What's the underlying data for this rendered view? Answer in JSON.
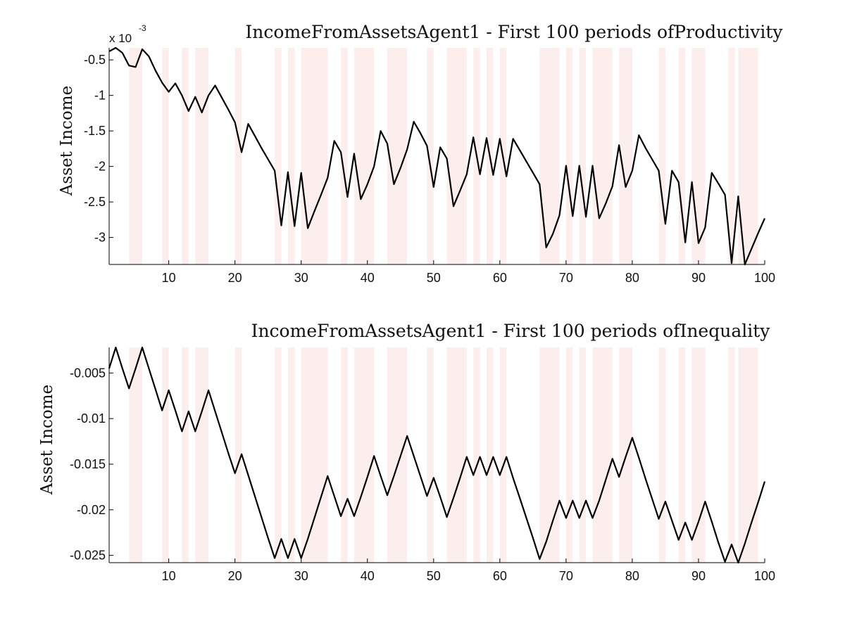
{
  "chart_data": [
    {
      "type": "line",
      "title": "IncomeFromAssetsAgent1 - First 100 periods ofProductivity",
      "ylabel": "Asset Income",
      "xlabel": "",
      "y_exponent_base": "x 10",
      "y_exponent_power": "-3",
      "xlim": [
        1,
        100
      ],
      "ylim": [
        -3.38,
        -0.33
      ],
      "xticks": [
        "10",
        "20",
        "30",
        "40",
        "50",
        "60",
        "70",
        "80",
        "90",
        "100"
      ],
      "yticks": [
        "-0.5",
        "-1",
        "-1.5",
        "-2",
        "-2.5",
        "-3"
      ],
      "ytick_values": [
        -0.5,
        -1,
        -1.5,
        -2,
        -2.5,
        -3
      ],
      "grid": false,
      "line_color": "#000000",
      "shade_color": "#fdeeee",
      "shaded_periods": [
        [
          4,
          6
        ],
        [
          9,
          10
        ],
        [
          12,
          13
        ],
        [
          14,
          16
        ],
        [
          20,
          21
        ],
        [
          26,
          27
        ],
        [
          28,
          29
        ],
        [
          30,
          34
        ],
        [
          36,
          37
        ],
        [
          38,
          41
        ],
        [
          43,
          46
        ],
        [
          49,
          50
        ],
        [
          52,
          55
        ],
        [
          56,
          57
        ],
        [
          58,
          59
        ],
        [
          60,
          61
        ],
        [
          66,
          69
        ],
        [
          70,
          71
        ],
        [
          72,
          73
        ],
        [
          74,
          77
        ],
        [
          78,
          80
        ],
        [
          84,
          85
        ],
        [
          87,
          88
        ],
        [
          89,
          91
        ],
        [
          94.5,
          95.5
        ],
        [
          96,
          99
        ]
      ],
      "x": [
        1,
        2,
        3,
        4,
        5,
        6,
        7,
        8,
        9,
        10,
        11,
        12,
        13,
        14,
        15,
        16,
        17,
        18,
        19,
        20,
        21,
        22,
        23,
        24,
        25,
        26,
        27,
        28,
        29,
        30,
        31,
        32,
        33,
        34,
        35,
        36,
        37,
        38,
        39,
        40,
        41,
        42,
        43,
        44,
        45,
        46,
        47,
        48,
        49,
        50,
        51,
        52,
        53,
        54,
        55,
        56,
        57,
        58,
        59,
        60,
        61,
        62,
        63,
        64,
        65,
        66,
        67,
        68,
        69,
        70,
        71,
        72,
        73,
        74,
        75,
        76,
        77,
        78,
        79,
        80,
        81,
        82,
        83,
        84,
        85,
        86,
        87,
        88,
        89,
        90,
        91,
        92,
        93,
        94,
        95,
        96,
        97,
        98,
        99,
        100
      ],
      "values": [
        -0.38,
        -0.33,
        -0.4,
        -0.58,
        -0.6,
        -0.35,
        -0.45,
        -0.65,
        -0.82,
        -0.95,
        -0.83,
        -1.0,
        -1.22,
        -1.02,
        -1.24,
        -1.0,
        -0.86,
        -1.03,
        -1.2,
        -1.38,
        -1.8,
        -1.4,
        -1.57,
        -1.74,
        -1.9,
        -2.06,
        -2.83,
        -2.08,
        -2.84,
        -2.09,
        -2.87,
        -2.63,
        -2.4,
        -2.16,
        -1.64,
        -1.8,
        -2.43,
        -1.82,
        -2.46,
        -2.25,
        -2.0,
        -1.5,
        -1.68,
        -2.25,
        -2.02,
        -1.76,
        -1.37,
        -1.53,
        -1.71,
        -2.29,
        -1.73,
        -1.89,
        -2.56,
        -2.34,
        -2.11,
        -1.59,
        -2.11,
        -1.6,
        -2.12,
        -1.61,
        -2.14,
        -1.61,
        -1.77,
        -1.93,
        -2.09,
        -2.25,
        -3.14,
        -2.95,
        -2.69,
        -1.99,
        -2.7,
        -1.99,
        -2.71,
        -1.99,
        -2.73,
        -2.52,
        -2.28,
        -1.7,
        -2.29,
        -2.06,
        -1.56,
        -1.74,
        -1.9,
        -2.06,
        -2.81,
        -2.06,
        -2.22,
        -3.07,
        -2.22,
        -3.08,
        -2.86,
        -2.09,
        -2.24,
        -2.4,
        -3.36,
        -2.42,
        -3.38,
        -3.16,
        -2.94,
        -2.73
      ]
    },
    {
      "type": "line",
      "title": "IncomeFromAssetsAgent1 - First 100 periods ofInequality",
      "ylabel": "Asset Income",
      "xlabel": "",
      "xlim": [
        1,
        100
      ],
      "ylim": [
        -0.0258,
        -0.0022
      ],
      "xticks": [
        "10",
        "20",
        "30",
        "40",
        "50",
        "60",
        "70",
        "80",
        "90",
        "100"
      ],
      "yticks": [
        "-0.005",
        "-0.01",
        "-0.015",
        "-0.02",
        "-0.025"
      ],
      "ytick_values": [
        -0.005,
        -0.01,
        -0.015,
        -0.02,
        -0.025
      ],
      "grid": false,
      "line_color": "#000000",
      "shade_color": "#fdeeee",
      "shaded_periods": [
        [
          4,
          6
        ],
        [
          9,
          10
        ],
        [
          12,
          13
        ],
        [
          14,
          16
        ],
        [
          20,
          21
        ],
        [
          26,
          27
        ],
        [
          28,
          29
        ],
        [
          30,
          34
        ],
        [
          36,
          37
        ],
        [
          38,
          41
        ],
        [
          43,
          46
        ],
        [
          49,
          50
        ],
        [
          52,
          55
        ],
        [
          56,
          57
        ],
        [
          58,
          59
        ],
        [
          60,
          61
        ],
        [
          66,
          69
        ],
        [
          70,
          71
        ],
        [
          72,
          73
        ],
        [
          74,
          77
        ],
        [
          78,
          80
        ],
        [
          84,
          85
        ],
        [
          87,
          88
        ],
        [
          89,
          91
        ],
        [
          94.5,
          95.5
        ],
        [
          96,
          99
        ]
      ],
      "x": [
        1,
        2,
        3,
        4,
        5,
        6,
        7,
        8,
        9,
        10,
        11,
        12,
        13,
        14,
        15,
        16,
        17,
        18,
        19,
        20,
        21,
        22,
        23,
        24,
        25,
        26,
        27,
        28,
        29,
        30,
        31,
        32,
        33,
        34,
        35,
        36,
        37,
        38,
        39,
        40,
        41,
        42,
        43,
        44,
        45,
        46,
        47,
        48,
        49,
        50,
        51,
        52,
        53,
        54,
        55,
        56,
        57,
        58,
        59,
        60,
        61,
        62,
        63,
        64,
        65,
        66,
        67,
        68,
        69,
        70,
        71,
        72,
        73,
        74,
        75,
        76,
        77,
        78,
        79,
        80,
        81,
        82,
        83,
        84,
        85,
        86,
        87,
        88,
        89,
        90,
        91,
        92,
        93,
        94,
        95,
        96,
        97,
        98,
        99,
        100
      ],
      "values": [
        -0.0045,
        -0.0022,
        -0.0045,
        -0.0067,
        -0.0045,
        -0.0022,
        -0.0045,
        -0.0068,
        -0.0091,
        -0.0069,
        -0.0091,
        -0.0114,
        -0.0092,
        -0.0114,
        -0.0092,
        -0.0069,
        -0.0092,
        -0.0115,
        -0.0138,
        -0.016,
        -0.0139,
        -0.0162,
        -0.0185,
        -0.0208,
        -0.0231,
        -0.0253,
        -0.0232,
        -0.0253,
        -0.0232,
        -0.0253,
        -0.0232,
        -0.0209,
        -0.0186,
        -0.0163,
        -0.0185,
        -0.0207,
        -0.0188,
        -0.0207,
        -0.0186,
        -0.0164,
        -0.0141,
        -0.0163,
        -0.0184,
        -0.0163,
        -0.0141,
        -0.0119,
        -0.0141,
        -0.0163,
        -0.0185,
        -0.0165,
        -0.0186,
        -0.0208,
        -0.0187,
        -0.0165,
        -0.0142,
        -0.0162,
        -0.0142,
        -0.0162,
        -0.0142,
        -0.0162,
        -0.0142,
        -0.0165,
        -0.0187,
        -0.0209,
        -0.0231,
        -0.0254,
        -0.0235,
        -0.0212,
        -0.019,
        -0.0209,
        -0.019,
        -0.0209,
        -0.019,
        -0.0209,
        -0.019,
        -0.0167,
        -0.0144,
        -0.0164,
        -0.0142,
        -0.0121,
        -0.0143,
        -0.0166,
        -0.0188,
        -0.021,
        -0.0191,
        -0.0212,
        -0.0233,
        -0.0214,
        -0.0233,
        -0.0213,
        -0.0191,
        -0.0213,
        -0.0236,
        -0.0257,
        -0.0238,
        -0.0258,
        -0.0237,
        -0.0214,
        -0.0192,
        -0.0169
      ]
    }
  ]
}
